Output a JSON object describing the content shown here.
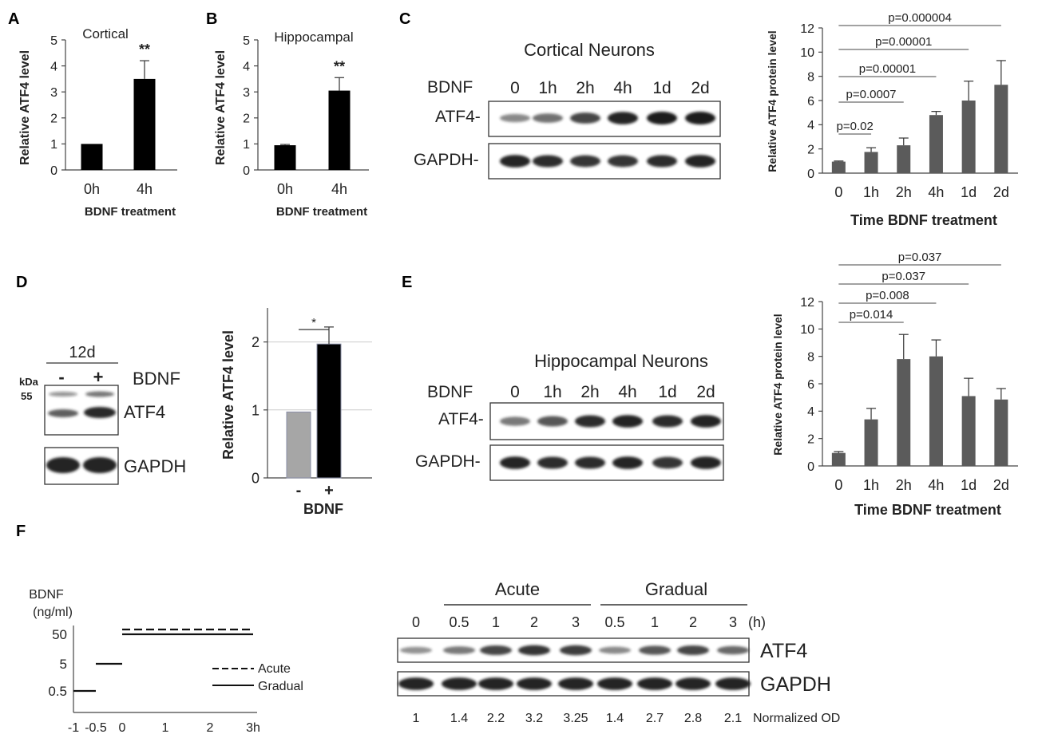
{
  "panel_letters": {
    "A": "A",
    "B": "B",
    "C": "C",
    "D": "D",
    "E": "E",
    "F": "F"
  },
  "colors": {
    "black_bar": "#000000",
    "dark_gray_bar": "#5b5b5b",
    "light_gray_bar": "#a6a6a6",
    "band": "#1a1a1a"
  },
  "chart_data": [
    {
      "panel": "A",
      "type": "bar",
      "title": "Cortical",
      "categories": [
        "0h",
        "4h"
      ],
      "values": [
        1,
        3.5
      ],
      "errors": [
        0,
        0.7
      ],
      "xlabel": "BDNF treatment",
      "ylabel": "Relative ATF4 level",
      "ylim": [
        0,
        5
      ],
      "yticks": [
        "0",
        "1",
        "2",
        "3",
        "4",
        "5"
      ],
      "annotations": [
        "**"
      ],
      "bar_color": "#000000",
      "grid": false
    },
    {
      "panel": "B",
      "type": "bar",
      "title": "Hippocampal",
      "categories": [
        "0h",
        "4h"
      ],
      "values": [
        0.95,
        3.05
      ],
      "errors": [
        0.03,
        0.5
      ],
      "xlabel": "BDNF treatment",
      "ylabel": "Relative ATF4 level",
      "ylim": [
        0,
        5
      ],
      "yticks": [
        "0",
        "1",
        "2",
        "3",
        "4",
        "5"
      ],
      "annotations": [
        "**"
      ],
      "bar_color": "#000000",
      "grid": false
    },
    {
      "panel": "C",
      "type": "bar",
      "categories": [
        "0",
        "1h",
        "2h",
        "4h",
        "1d",
        "2d"
      ],
      "values": [
        0.95,
        1.75,
        2.3,
        4.8,
        6,
        7.3
      ],
      "errors": [
        0.05,
        0.35,
        0.6,
        0.3,
        1.6,
        2
      ],
      "xlabel": "Time BDNF treatment",
      "ylabel": "Relative ATF4 protein level",
      "ylim": [
        0,
        12
      ],
      "yticks": [
        "0",
        "2",
        "4",
        "6",
        "8",
        "10",
        "12"
      ],
      "comparisons": [
        {
          "to": 1,
          "label": "p=0.02"
        },
        {
          "to": 2,
          "label": "p=0.0007"
        },
        {
          "to": 3,
          "label": "p=0.00001"
        },
        {
          "to": 4,
          "label": "p=0.00001"
        },
        {
          "to": 5,
          "label": "p=0.000004"
        }
      ],
      "bar_color": "#5b5b5b",
      "grid": false
    },
    {
      "panel": "D",
      "type": "bar",
      "categories": [
        "-",
        "+"
      ],
      "values": [
        0.97,
        1.97
      ],
      "errors": [
        0,
        0.25
      ],
      "xlabel": "BDNF",
      "ylabel": "Relative ATF4 level",
      "ylim": [
        0,
        2.5
      ],
      "yticks": [
        "0",
        "1",
        "2"
      ],
      "annotations": [
        "*"
      ],
      "bar_colors": [
        "#a6a6a6",
        "#000000"
      ],
      "grid": true
    },
    {
      "panel": "E",
      "type": "bar",
      "categories": [
        "0",
        "1h",
        "2h",
        "4h",
        "1d",
        "2d"
      ],
      "values": [
        0.95,
        3.4,
        7.8,
        8,
        5.1,
        4.85
      ],
      "errors": [
        0.1,
        0.8,
        1.8,
        1.2,
        1.3,
        0.8
      ],
      "xlabel": "Time BDNF treatment",
      "ylabel": "Relative ATF4 protein level",
      "ylim": [
        0,
        12
      ],
      "yticks": [
        "0",
        "2",
        "4",
        "6",
        "8",
        "10",
        "12"
      ],
      "comparisons": [
        {
          "to": 2,
          "label": "p=0.014"
        },
        {
          "to": 3,
          "label": "p=0.008"
        },
        {
          "to": 4,
          "label": "p=0.037"
        },
        {
          "to": 5,
          "label": "p=0.037"
        }
      ],
      "bar_color": "#5b5b5b",
      "grid": false
    },
    {
      "panel": "F",
      "type": "line",
      "ylabel": "BDNF (ng/ml)",
      "xticks": [
        "-1",
        "-0.5",
        "0",
        "1",
        "2",
        "3h"
      ],
      "yticks": [
        "0.5",
        "5",
        "50"
      ],
      "series": [
        {
          "name": "Acute",
          "style": "dashed",
          "segments": [
            {
              "x": [
                0,
                3
              ],
              "y": 50
            }
          ]
        },
        {
          "name": "Gradual",
          "style": "solid",
          "segments": [
            {
              "x": [
                -1,
                -0.5
              ],
              "y": 0.5
            },
            {
              "x": [
                -0.5,
                0
              ],
              "y": 5
            },
            {
              "x": [
                0,
                3
              ],
              "y": 50
            }
          ]
        }
      ]
    }
  ],
  "blot_C": {
    "title": "Cortical Neurons",
    "treatment_label": "BDNF",
    "lanes": [
      "0",
      "1h",
      "2h",
      "4h",
      "1d",
      "2d"
    ],
    "rows": [
      "ATF4-",
      "GAPDH-"
    ],
    "atf4_intensity": [
      0.35,
      0.5,
      0.75,
      0.95,
      1,
      1
    ],
    "gapdh_intensity": [
      0.95,
      0.9,
      0.85,
      0.85,
      0.9,
      0.95
    ]
  },
  "blot_D": {
    "time_label": "12d",
    "kda_label": "kDa",
    "marker": "55",
    "treatment_label": "BDNF",
    "lanes": [
      "-",
      "+"
    ],
    "rows": [
      "ATF4",
      "GAPDH"
    ]
  },
  "blot_E": {
    "title": "Hippocampal Neurons",
    "treatment_label": "BDNF",
    "lanes": [
      "0",
      "1h",
      "2h",
      "4h",
      "1d",
      "2d"
    ],
    "rows": [
      "ATF4-",
      "GAPDH-"
    ],
    "atf4_intensity": [
      0.45,
      0.65,
      0.9,
      0.95,
      0.9,
      0.95
    ],
    "gapdh_intensity": [
      0.95,
      0.9,
      0.9,
      0.95,
      0.85,
      0.95
    ]
  },
  "blot_F": {
    "groups": [
      "Acute",
      "Gradual"
    ],
    "lanes": [
      "0",
      "0.5",
      "1",
      "2",
      "3",
      "0.5",
      "1",
      "2",
      "3"
    ],
    "unit": "(h)",
    "rows": [
      "ATF4",
      "GAPDH"
    ],
    "atf4_intensity": [
      0.3,
      0.45,
      0.75,
      0.85,
      0.8,
      0.35,
      0.65,
      0.75,
      0.55
    ],
    "normalized_od": [
      "1",
      "1.4",
      "2.2",
      "3.2",
      "3.25",
      "1.4",
      "2.7",
      "2.8",
      "2.1"
    ],
    "normalized_label": "Normalized OD"
  }
}
